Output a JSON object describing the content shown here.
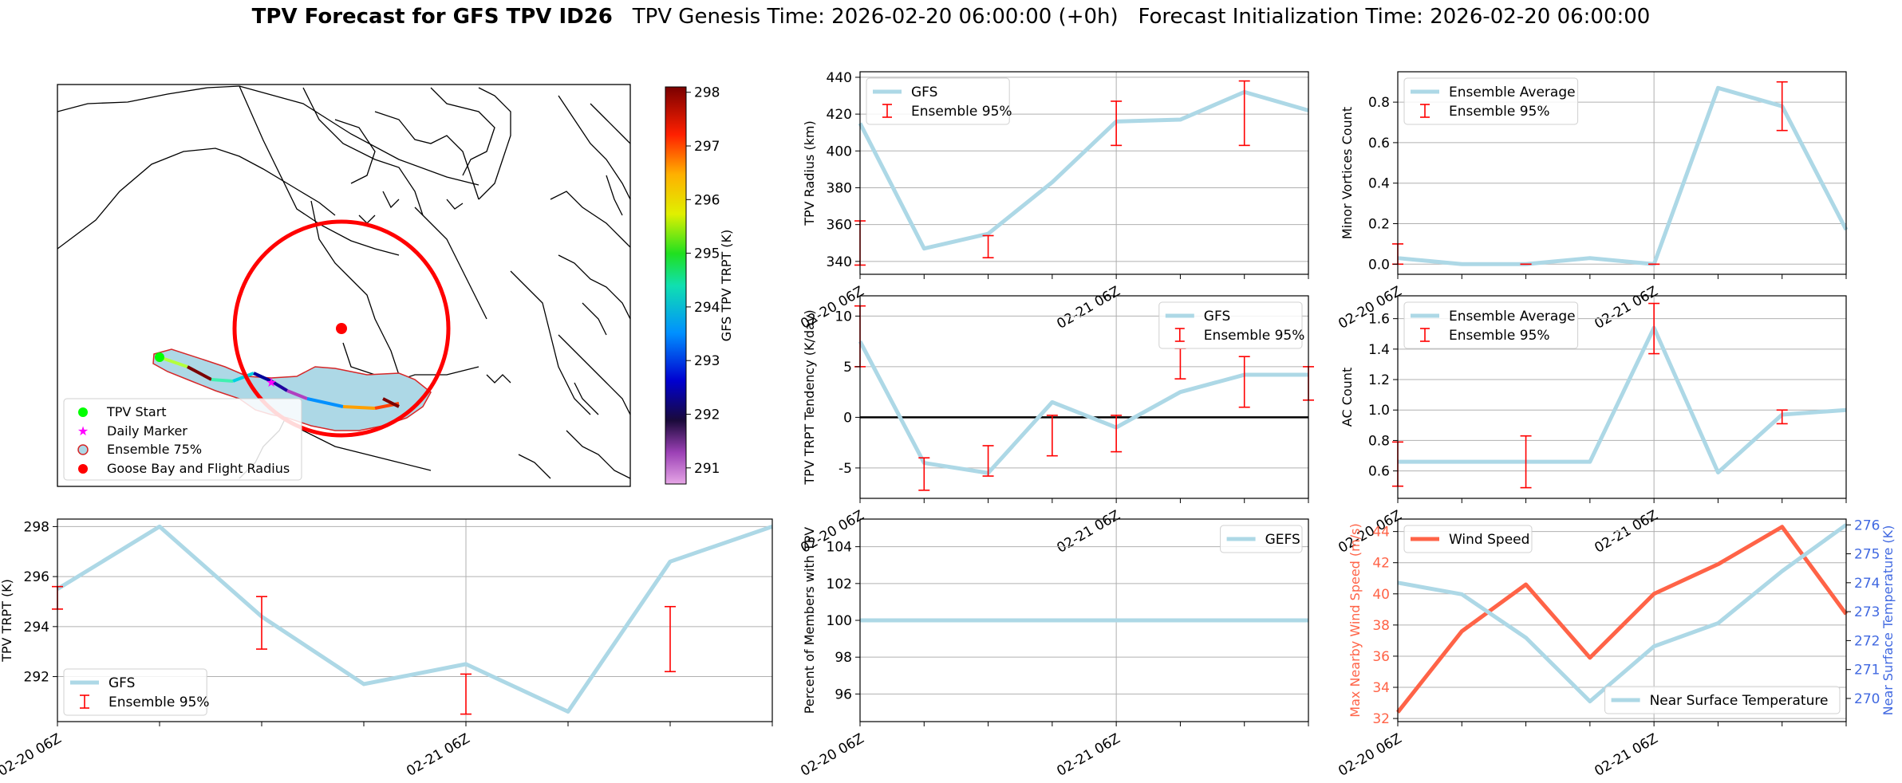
{
  "figure_title": {
    "bold": "TPV Forecast for GFS TPV ID26",
    "genesis": "TPV Genesis Time: 2026-02-20 06:00:00 (+0h)",
    "init": "Forecast Initialization Time: 2026-02-20 06:00:00"
  },
  "colors": {
    "gfs_line": "#add8e6",
    "error_bar": "#ff0000",
    "wind": "#ff6347",
    "temp_axis": "#4169e1",
    "grid": "#b0b0b0"
  },
  "map": {
    "legend": [
      "TPV Start",
      "Daily Marker",
      "Ensemble 75%",
      "Goose Bay and Flight Radius"
    ],
    "colorbar_label": "GFS TPV TRPT (K)",
    "colorbar_ticks": [
      "291",
      "292",
      "293",
      "294",
      "295",
      "296",
      "297",
      "298"
    ],
    "colorbar_range": [
      290.7,
      298.1
    ]
  },
  "chart_data": [
    {
      "id": "radius",
      "type": "line",
      "ylabel": "TPV Radius (km)",
      "xlabel": "",
      "x_ticks": [
        "02-20 06Z",
        "02-21 06Z"
      ],
      "ylim": [
        333,
        443
      ],
      "yticks": [
        340,
        360,
        380,
        400,
        420,
        440
      ],
      "grid": true,
      "legend": "top-left",
      "series": [
        {
          "name": "GFS",
          "x": [
            0,
            6,
            12,
            18,
            24,
            30,
            36,
            42
          ],
          "values": [
            415,
            347,
            355,
            383,
            416,
            417,
            432,
            422
          ]
        }
      ],
      "errorbars": {
        "name": "Ensemble 95%",
        "x": [
          0,
          12,
          24,
          36
        ],
        "low": [
          338,
          342,
          403,
          403
        ],
        "high": [
          362,
          354,
          427,
          438
        ]
      }
    },
    {
      "id": "minor_vortices",
      "type": "line",
      "ylabel": "Minor Vortices Count",
      "xlabel": "",
      "x_ticks": [
        "02-20 06Z",
        "02-21 06Z"
      ],
      "ylim": [
        -0.05,
        0.95
      ],
      "yticks": [
        0.0,
        0.2,
        0.4,
        0.6,
        0.8
      ],
      "grid": true,
      "legend": "top-left",
      "series": [
        {
          "name": "Ensemble Average",
          "x": [
            0,
            6,
            12,
            18,
            24,
            30,
            36,
            42
          ],
          "values": [
            0.03,
            0.0,
            0.0,
            0.03,
            0.0,
            0.87,
            0.78,
            0.17
          ]
        }
      ],
      "errorbars": {
        "name": "Ensemble 95%",
        "x": [
          0,
          12,
          24,
          36
        ],
        "low": [
          0.0,
          0.0,
          0.0,
          0.66
        ],
        "high": [
          0.1,
          0.0,
          0.0,
          0.9
        ]
      }
    },
    {
      "id": "tendency",
      "type": "line",
      "ylabel": "TPV TRPT Tendency (K/day)",
      "xlabel": "",
      "x_ticks": [
        "02-20 06Z",
        "02-21 06Z"
      ],
      "ylim": [
        -8,
        12
      ],
      "yticks": [
        -5,
        0,
        5,
        10
      ],
      "grid": true,
      "zero_line": true,
      "legend": "top-right",
      "series": [
        {
          "name": "GFS",
          "x": [
            0,
            6,
            12,
            18,
            24,
            30,
            36,
            42
          ],
          "values": [
            7.5,
            -4.5,
            -5.5,
            1.5,
            -1.0,
            2.5,
            4.2,
            4.2
          ]
        }
      ],
      "errorbars": {
        "name": "Ensemble 95%",
        "x": [
          0,
          6,
          12,
          18,
          24,
          30,
          36,
          42
        ],
        "low": [
          5.0,
          -7.2,
          -5.8,
          -3.8,
          -3.4,
          3.8,
          1.0,
          1.7
        ],
        "high": [
          11.0,
          -4.0,
          -2.8,
          0.2,
          0.2,
          6.8,
          6.0,
          5.0
        ]
      }
    },
    {
      "id": "ac_count",
      "type": "line",
      "ylabel": "AC Count",
      "xlabel": "",
      "x_ticks": [
        "02-20 06Z",
        "02-21 06Z"
      ],
      "ylim": [
        0.42,
        1.75
      ],
      "yticks": [
        0.6,
        0.8,
        1.0,
        1.2,
        1.4,
        1.6
      ],
      "grid": true,
      "legend": "top-left",
      "series": [
        {
          "name": "Ensemble Average",
          "x": [
            0,
            6,
            12,
            18,
            24,
            30,
            36,
            42
          ],
          "values": [
            0.66,
            0.66,
            0.66,
            0.66,
            1.54,
            0.59,
            0.97,
            1.0
          ]
        }
      ],
      "errorbars": {
        "name": "Ensemble 95%",
        "x": [
          0,
          12,
          24,
          36
        ],
        "low": [
          0.5,
          0.49,
          1.37,
          0.91
        ],
        "high": [
          0.79,
          0.83,
          1.7,
          1.0
        ]
      }
    },
    {
      "id": "trpt",
      "type": "line",
      "ylabel": "TPV TRPT (K)",
      "xlabel": "",
      "x_ticks": [
        "02-20 06Z",
        "02-21 06Z"
      ],
      "ylim": [
        290.2,
        298.3
      ],
      "yticks": [
        292,
        294,
        296,
        298
      ],
      "grid": true,
      "legend": "bottom-left",
      "series": [
        {
          "name": "GFS",
          "x": [
            0,
            6,
            12,
            18,
            24,
            30,
            36,
            42
          ],
          "values": [
            295.5,
            298.0,
            294.4,
            291.7,
            292.5,
            290.6,
            296.6,
            298.0
          ]
        }
      ],
      "errorbars": {
        "name": "Ensemble 95%",
        "x": [
          0,
          12,
          24,
          36
        ],
        "low": [
          294.7,
          293.1,
          290.5,
          292.2
        ],
        "high": [
          295.6,
          295.2,
          292.1,
          294.8
        ]
      }
    },
    {
      "id": "percent",
      "type": "line",
      "ylabel": "Percent of Members with TPV",
      "xlabel": "",
      "x_ticks": [
        "02-20 06Z",
        "02-21 06Z"
      ],
      "ylim": [
        94.5,
        105.5
      ],
      "yticks": [
        96,
        98,
        100,
        102,
        104
      ],
      "grid": true,
      "legend": "top-right",
      "series": [
        {
          "name": "GEFS",
          "x": [
            0,
            42
          ],
          "values": [
            100,
            100
          ]
        }
      ]
    },
    {
      "id": "wind_temp",
      "type": "line",
      "ylabel": "Max Nearby Wind Speed (m/s)",
      "ylabel_right": "Near Surface Temperature (K)",
      "xlabel": "",
      "x_ticks": [
        "02-20 06Z",
        "02-21 06Z"
      ],
      "ylim": [
        31.8,
        44.8
      ],
      "yticks": [
        32,
        34,
        36,
        38,
        40,
        42,
        44
      ],
      "ylim_right": [
        269.2,
        276.2
      ],
      "yticks_right": [
        270,
        271,
        272,
        273,
        274,
        275,
        276
      ],
      "grid": true,
      "legend": "top-left / bottom-right",
      "series": [
        {
          "name": "Wind Speed",
          "axis": "left",
          "x": [
            0,
            6,
            12,
            18,
            24,
            30,
            36,
            42
          ],
          "values": [
            32.4,
            37.6,
            40.6,
            35.9,
            40.0,
            41.9,
            44.3,
            38.7
          ]
        },
        {
          "name": "Near Surface Temperature",
          "axis": "right",
          "x": [
            0,
            6,
            12,
            18,
            24,
            30,
            36,
            42
          ],
          "values": [
            274.0,
            273.6,
            272.1,
            269.9,
            271.8,
            272.6,
            274.4,
            276.0
          ]
        }
      ]
    }
  ]
}
